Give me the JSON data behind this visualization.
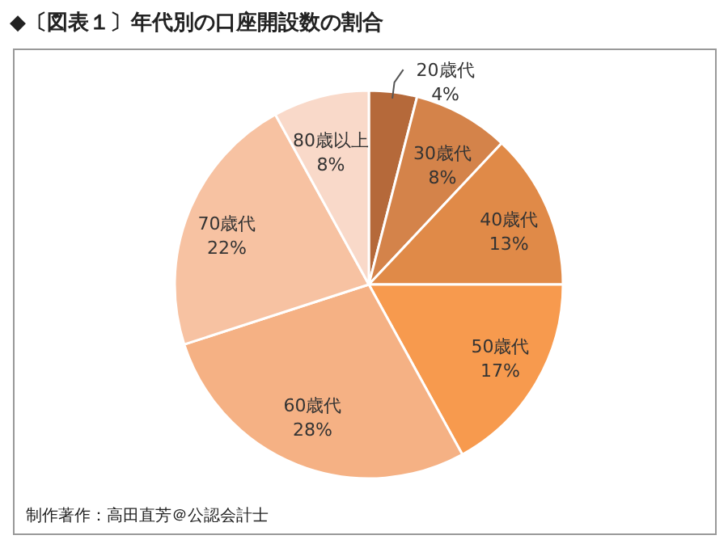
{
  "chart_data": {
    "type": "pie",
    "title": "◆〔図表１〕年代別の口座開設数の割合",
    "categories": [
      "20歳代",
      "30歳代",
      "40歳代",
      "50歳代",
      "60歳代",
      "70歳代",
      "80歳以上"
    ],
    "values": [
      4,
      8,
      13,
      17,
      28,
      22,
      8
    ],
    "value_labels": [
      "4%",
      "8%",
      "13%",
      "17%",
      "28%",
      "22%",
      "8%"
    ],
    "colors": [
      "#b5693a",
      "#d4834a",
      "#e08a48",
      "#f79a4e",
      "#f5b184",
      "#f7c2a2",
      "#f9d9c9"
    ],
    "annotations": [
      "制作著作：高田直芳＠公認会計士"
    ]
  }
}
